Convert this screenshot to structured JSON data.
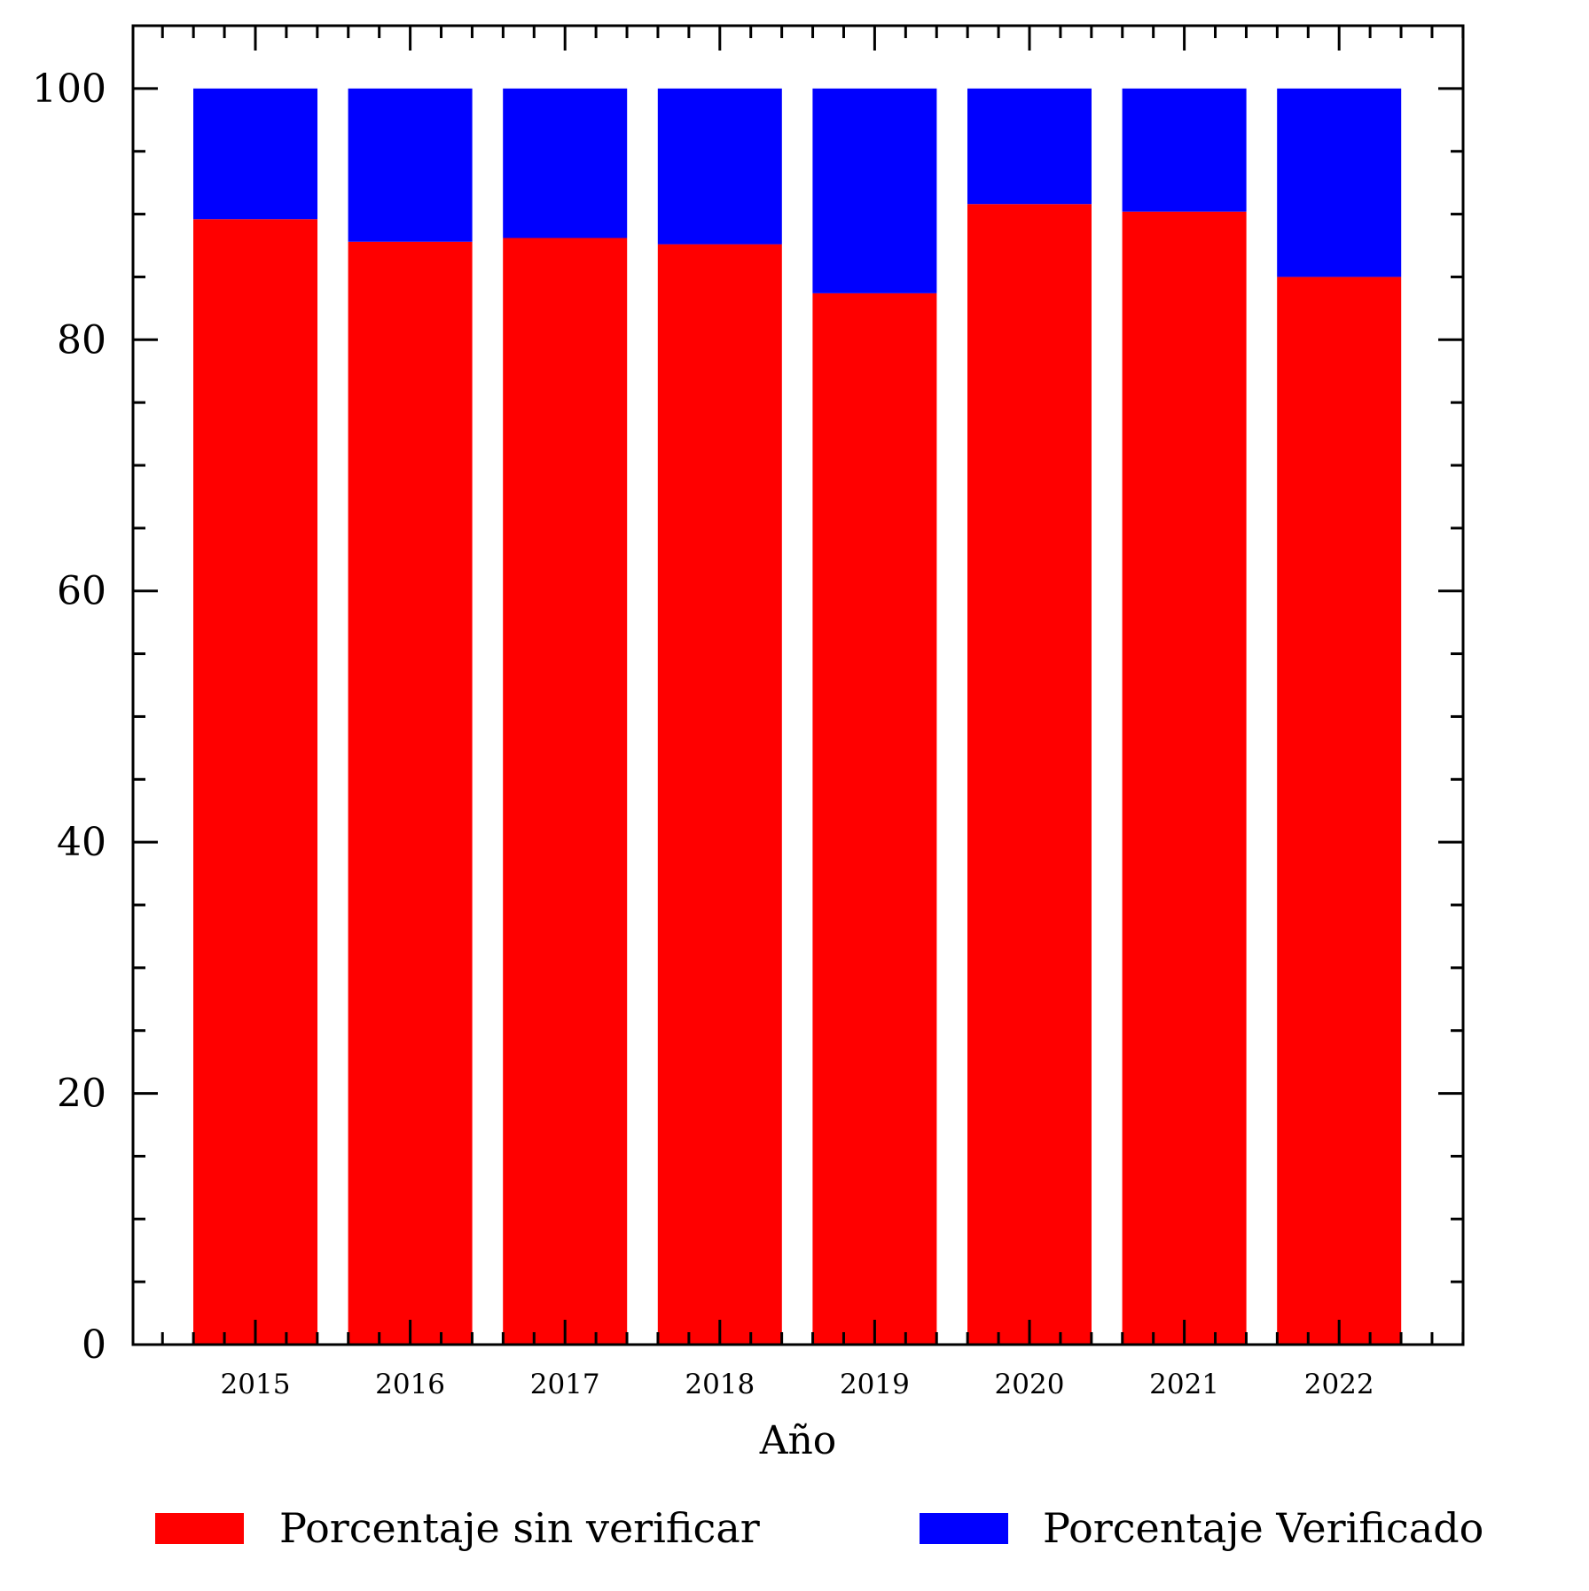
{
  "chart_data": {
    "type": "bar",
    "stacked": true,
    "title": "",
    "xlabel": "Año",
    "ylabel": "",
    "ylim": [
      0,
      105
    ],
    "yticks": [
      0,
      20,
      40,
      60,
      80,
      100
    ],
    "categories": [
      "2015",
      "2016",
      "2017",
      "2018",
      "2019",
      "2020",
      "2021",
      "2022"
    ],
    "series": [
      {
        "name": "Porcentaje sin verificar",
        "color": "#ff0000",
        "values": [
          89.6,
          87.8,
          88.1,
          87.6,
          83.7,
          90.8,
          90.2,
          85.0
        ]
      },
      {
        "name": "Porcentaje Verificado",
        "color": "#0000ff",
        "values": [
          10.4,
          12.2,
          11.9,
          12.4,
          16.3,
          9.2,
          9.8,
          15.0
        ]
      }
    ],
    "grid": false,
    "legend": "bottom"
  }
}
